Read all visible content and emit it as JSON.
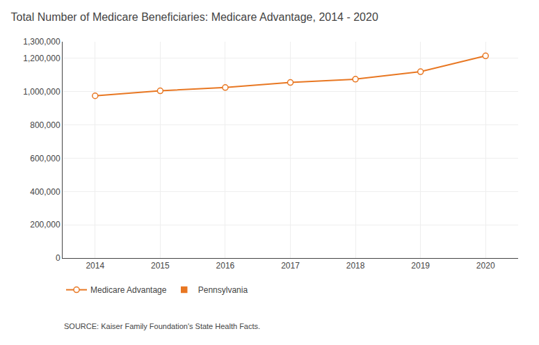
{
  "chart_data": {
    "type": "line",
    "title": "Total Number of Medicare Beneficiaries: Medicare Advantage, 2014 - 2020",
    "x": [
      2014,
      2015,
      2016,
      2017,
      2018,
      2019,
      2020
    ],
    "series": [
      {
        "name": "Medicare Advantage",
        "color": "#E87722",
        "marker": "circle",
        "values": [
          975000,
          1005000,
          1025000,
          1055000,
          1075000,
          1120000,
          1215000
        ]
      },
      {
        "name": "Pennsylvania",
        "color": "#E87722",
        "marker": "square",
        "values": [
          null,
          null,
          null,
          null,
          null,
          null,
          null
        ]
      }
    ],
    "xlim": [
      2013.5,
      2020.5
    ],
    "xticks": [
      2014,
      2015,
      2016,
      2017,
      2018,
      2019,
      2020
    ],
    "ylim": [
      0,
      1300000
    ],
    "yticks": [
      0,
      {
        "value": 200000,
        "label": "200,000"
      },
      {
        "value": 400000,
        "label": "400,000"
      },
      {
        "value": 600000,
        "label": "600,000"
      },
      {
        "value": 800000,
        "label": "800,000"
      },
      {
        "value": 1000000,
        "label": "1,000,000"
      },
      {
        "value": 1200000,
        "label": "1,200,000"
      },
      {
        "value": 1300000,
        "label": "1,300,000"
      }
    ],
    "grid": true,
    "legend": "bottom",
    "annotations": [
      "SOURCE: Kaiser Family Foundation's State Health Facts."
    ]
  }
}
